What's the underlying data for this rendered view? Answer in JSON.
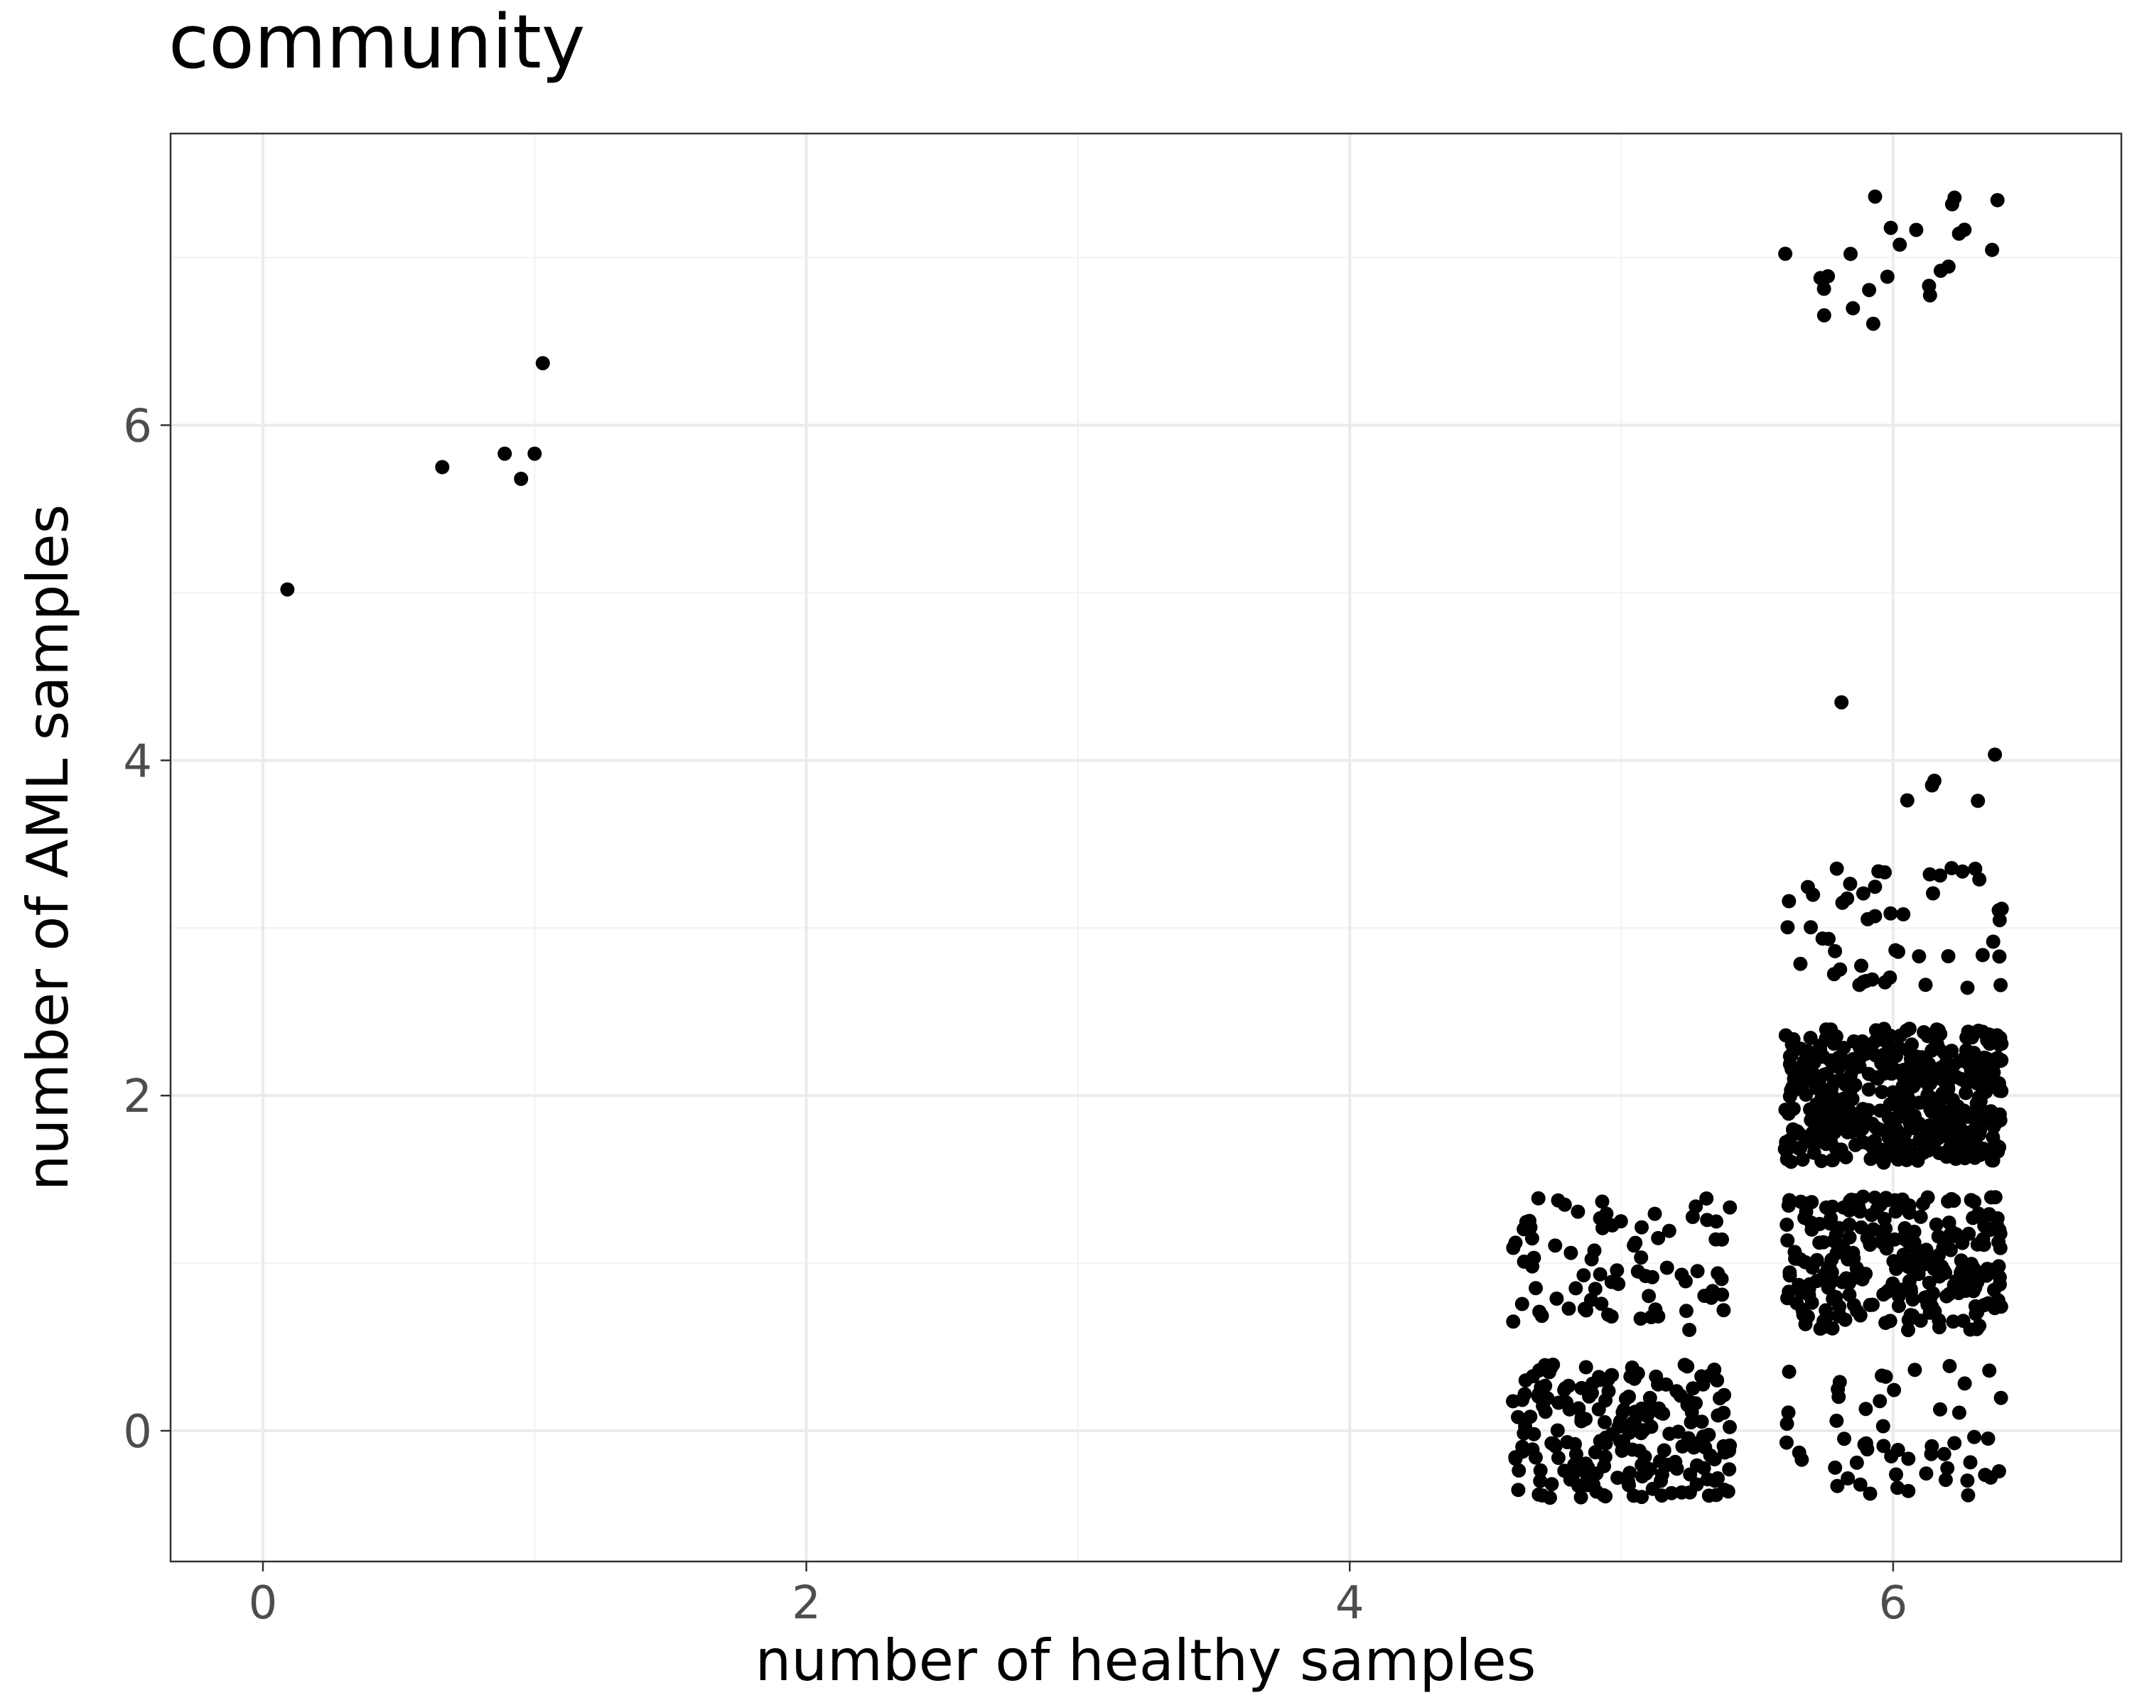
{
  "chart_data": {
    "type": "scatter",
    "title": "community",
    "xlabel": "number of healthy samples",
    "ylabel": "number of AML samples",
    "xlim": [
      -0.34,
      6.84
    ],
    "ylim": [
      -0.78,
      7.74
    ],
    "xticks": [
      0,
      2,
      4,
      6
    ],
    "yticks": [
      0,
      2,
      4,
      6
    ],
    "xtick_labels": [
      "0",
      "2",
      "4",
      "6"
    ],
    "ytick_labels": [
      "0",
      "2",
      "4",
      "6"
    ],
    "grid": true,
    "point_color": "#000000",
    "jitter": 0.4,
    "groups": [
      {
        "x": 0,
        "y": 5,
        "count": 1
      },
      {
        "x": 1,
        "y": 6,
        "count": 4
      },
      {
        "x": 1,
        "y": 7,
        "count": 1
      },
      {
        "x": 5,
        "y": 0,
        "count": 200
      },
      {
        "x": 5,
        "y": 1,
        "count": 80
      },
      {
        "x": 6,
        "y": 0,
        "count": 55
      },
      {
        "x": 6,
        "y": 1,
        "count": 260
      },
      {
        "x": 6,
        "y": 2,
        "count": 460
      },
      {
        "x": 6,
        "y": 3,
        "count": 50
      },
      {
        "x": 6,
        "y": 4,
        "count": 6
      },
      {
        "x": 6,
        "y": 7,
        "count": 24
      }
    ]
  }
}
